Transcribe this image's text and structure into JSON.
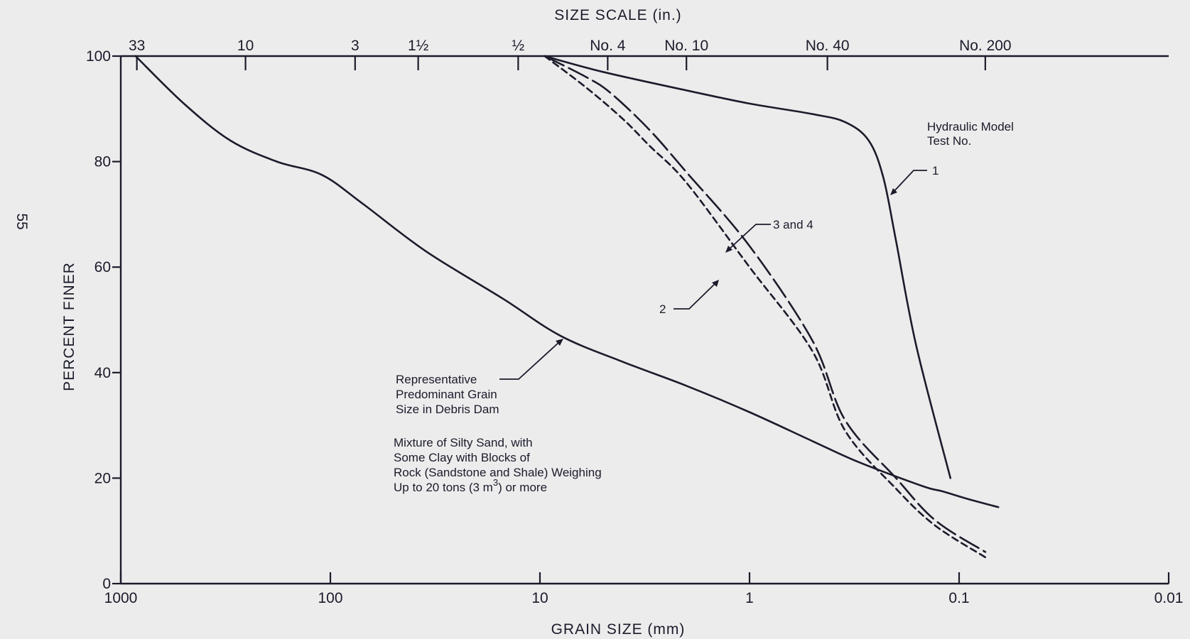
{
  "page_number": "55",
  "chart_data": {
    "type": "line",
    "title": "",
    "xlabel": "GRAIN SIZE (mm)",
    "ylabel": "PERCENT FINER",
    "top_axis_label": "SIZE SCALE (in.)",
    "x_scale": "log",
    "x_direction": "reversed",
    "xlim": [
      1000,
      0.01
    ],
    "ylim": [
      0,
      100
    ],
    "x_ticks": [
      {
        "value": 1000,
        "label": "1000"
      },
      {
        "value": 100,
        "label": "100"
      },
      {
        "value": 10,
        "label": "10"
      },
      {
        "value": 1,
        "label": "1"
      },
      {
        "value": 0.1,
        "label": "0.1"
      },
      {
        "value": 0.01,
        "label": "0.01"
      }
    ],
    "y_ticks": [
      {
        "value": 0,
        "label": "0"
      },
      {
        "value": 20,
        "label": "20"
      },
      {
        "value": 40,
        "label": "40"
      },
      {
        "value": 60,
        "label": "60"
      },
      {
        "value": 80,
        "label": "80"
      },
      {
        "value": 100,
        "label": "100"
      }
    ],
    "top_ticks": [
      {
        "value": 838,
        "label": "33"
      },
      {
        "value": 254,
        "label": "10"
      },
      {
        "value": 76.2,
        "label": "3"
      },
      {
        "value": 38.1,
        "label": "1½"
      },
      {
        "value": 12.7,
        "label": "½"
      },
      {
        "value": 4.75,
        "label": "No. 4"
      },
      {
        "value": 2.0,
        "label": "No. 10"
      },
      {
        "value": 0.425,
        "label": "No. 40"
      },
      {
        "value": 0.075,
        "label": "No. 200"
      }
    ],
    "series": [
      {
        "name": "Representative Predominant Grain Size in Debris Dam",
        "style": "solid",
        "points": [
          [
            850,
            100
          ],
          [
            500,
            91
          ],
          [
            300,
            84
          ],
          [
            180,
            80
          ],
          [
            110,
            77.5
          ],
          [
            70,
            72
          ],
          [
            35,
            63
          ],
          [
            15,
            54
          ],
          [
            8,
            47
          ],
          [
            4,
            42
          ],
          [
            2,
            37.5
          ],
          [
            1,
            32.5
          ],
          [
            0.5,
            27
          ],
          [
            0.3,
            23
          ],
          [
            0.15,
            18.5
          ],
          [
            0.12,
            17.5
          ],
          [
            0.09,
            16
          ],
          [
            0.065,
            14.5
          ]
        ]
      },
      {
        "name": "1",
        "style": "solid",
        "points": [
          [
            9.5,
            100
          ],
          [
            5,
            97
          ],
          [
            2,
            93.5
          ],
          [
            1,
            91
          ],
          [
            0.5,
            89
          ],
          [
            0.35,
            87.5
          ],
          [
            0.27,
            84
          ],
          [
            0.23,
            77
          ],
          [
            0.2,
            65
          ],
          [
            0.16,
            45
          ],
          [
            0.11,
            20
          ]
        ]
      },
      {
        "name": "3 and 4",
        "style": "long-dash",
        "points": [
          [
            9.5,
            100
          ],
          [
            6,
            96
          ],
          [
            4.6,
            93
          ],
          [
            3,
            86
          ],
          [
            2,
            78
          ],
          [
            1,
            64
          ],
          [
            0.5,
            46
          ],
          [
            0.35,
            31
          ],
          [
            0.2,
            20
          ],
          [
            0.13,
            12
          ],
          [
            0.075,
            6
          ]
        ]
      },
      {
        "name": "2",
        "style": "short-dash",
        "points": [
          [
            9.5,
            100
          ],
          [
            6,
            94
          ],
          [
            4,
            88
          ],
          [
            3,
            83
          ],
          [
            2,
            76
          ],
          [
            1,
            60
          ],
          [
            0.5,
            44
          ],
          [
            0.35,
            29
          ],
          [
            0.2,
            18
          ],
          [
            0.13,
            11
          ],
          [
            0.075,
            5
          ]
        ]
      }
    ],
    "annotations": {
      "legend_title_lines": [
        "Hydraulic Model",
        "Test No."
      ],
      "label_1": "1",
      "label_34": "3 and 4",
      "label_2": "2",
      "dam_lines": [
        "Representative",
        "Predominant Grain",
        "Size in Debris Dam"
      ],
      "mixture_lines": [
        "Mixture of Silty Sand, with",
        "Some Clay with Blocks of",
        "Rock (Sandstone and Shale) Weighing"
      ],
      "mixture_last_prefix": "Up to 20 tons (3 m",
      "mixture_last_sup": "3",
      "mixture_last_suffix": ") or more"
    }
  }
}
